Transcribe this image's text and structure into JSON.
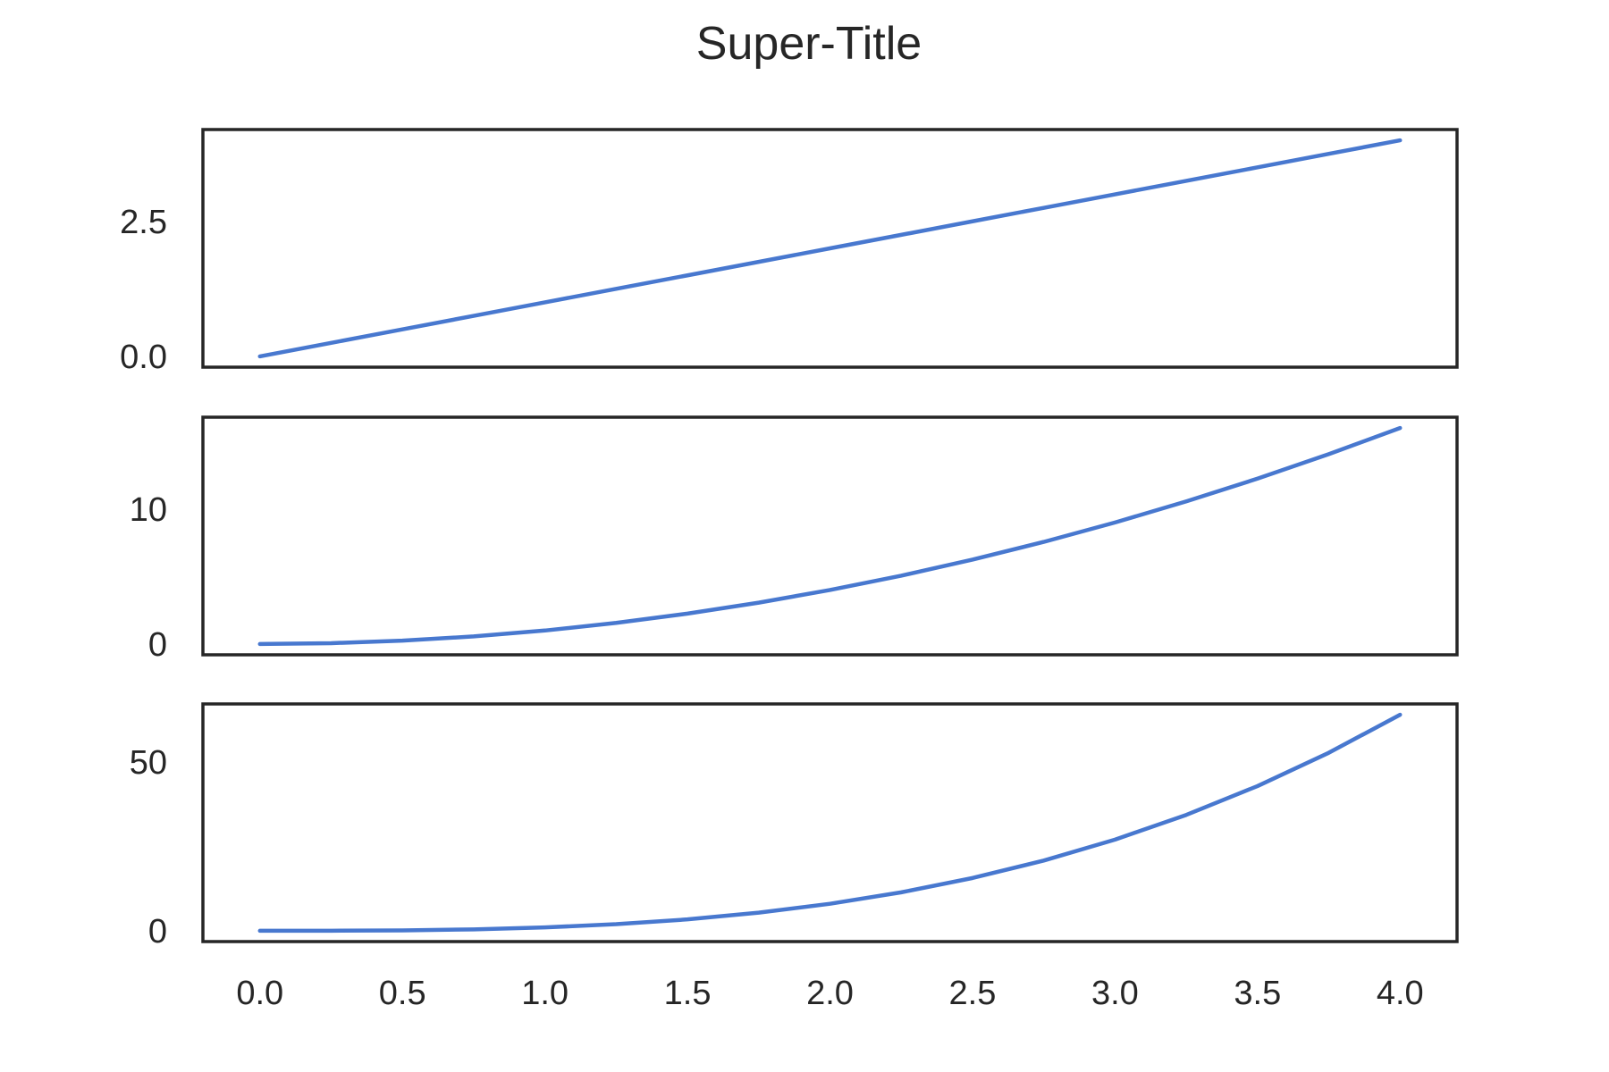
{
  "figure": {
    "suptitle": "Super-Title",
    "line_color": "#4878CF"
  },
  "chart_data": [
    {
      "type": "line",
      "title": "",
      "xlabel": "",
      "ylabel": "",
      "grid": false,
      "xlim": [
        -0.2,
        4.2
      ],
      "ylim": [
        -0.2,
        4.2
      ],
      "yticks": [
        0.0,
        2.5
      ],
      "ytick_labels": [
        "0.0",
        "2.5"
      ],
      "xticks_visible": false,
      "series": [
        {
          "x": [
            0,
            0.25,
            0.5,
            0.75,
            1,
            1.25,
            1.5,
            1.75,
            2,
            2.25,
            2.5,
            2.75,
            3,
            3.25,
            3.5,
            3.75,
            4
          ],
          "y": [
            0,
            0.25,
            0.5,
            0.75,
            1,
            1.25,
            1.5,
            1.75,
            2,
            2.25,
            2.5,
            2.75,
            3,
            3.25,
            3.5,
            3.75,
            4
          ]
        }
      ]
    },
    {
      "type": "line",
      "title": "",
      "xlabel": "",
      "ylabel": "",
      "grid": false,
      "xlim": [
        -0.2,
        4.2
      ],
      "ylim": [
        -0.8,
        16.8
      ],
      "yticks": [
        0,
        10
      ],
      "ytick_labels": [
        "0",
        "10"
      ],
      "xticks_visible": false,
      "series": [
        {
          "x": [
            0,
            0.25,
            0.5,
            0.75,
            1,
            1.25,
            1.5,
            1.75,
            2,
            2.25,
            2.5,
            2.75,
            3,
            3.25,
            3.5,
            3.75,
            4
          ],
          "y": [
            0,
            0.0625,
            0.25,
            0.5625,
            1,
            1.5625,
            2.25,
            3.0625,
            4,
            5.0625,
            6.25,
            7.5625,
            9,
            10.5625,
            12.25,
            14.0625,
            16
          ]
        }
      ]
    },
    {
      "type": "line",
      "title": "",
      "xlabel": "",
      "ylabel": "",
      "grid": false,
      "xlim": [
        -0.2,
        4.2
      ],
      "ylim": [
        -3.2,
        67.2
      ],
      "yticks": [
        0,
        50
      ],
      "ytick_labels": [
        "0",
        "50"
      ],
      "xticks_visible": true,
      "xticks": [
        0,
        0.5,
        1,
        1.5,
        2,
        2.5,
        3,
        3.5,
        4
      ],
      "xtick_labels": [
        "0.0",
        "0.5",
        "1.0",
        "1.5",
        "2.0",
        "2.5",
        "3.0",
        "3.5",
        "4.0"
      ],
      "series": [
        {
          "x": [
            0,
            0.25,
            0.5,
            0.75,
            1,
            1.25,
            1.5,
            1.75,
            2,
            2.25,
            2.5,
            2.75,
            3,
            3.25,
            3.5,
            3.75,
            4
          ],
          "y": [
            0,
            0.015625,
            0.125,
            0.421875,
            1,
            1.953125,
            3.375,
            5.359375,
            8,
            11.390625,
            15.625,
            20.796875,
            27,
            34.328125,
            42.875,
            52.734375,
            64
          ]
        }
      ]
    }
  ]
}
